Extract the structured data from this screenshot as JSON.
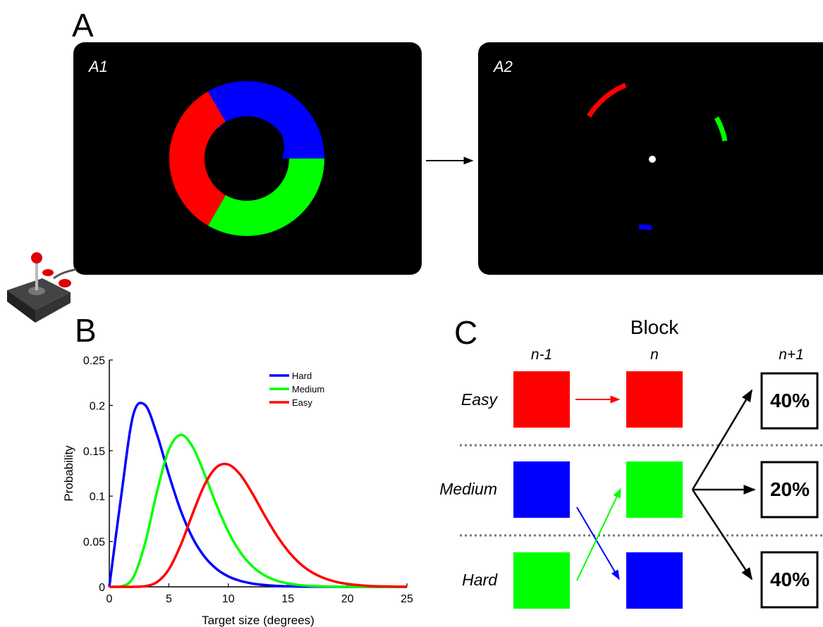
{
  "panels": {
    "a": {
      "label": "A",
      "screens": [
        "A1",
        "A2"
      ]
    },
    "b": {
      "label": "B"
    },
    "c": {
      "label": "C",
      "title": "Block",
      "columns": [
        "n-1",
        "n",
        "n+1"
      ],
      "rows": [
        "Easy",
        "Medium",
        "Hard"
      ],
      "outcomes": [
        "40%",
        "20%",
        "40%"
      ]
    }
  },
  "chart_data": {
    "type": "line",
    "xlabel": "Target size (degrees)",
    "ylabel": "Probability",
    "x": [
      0,
      1,
      2,
      3,
      4,
      5,
      6,
      7,
      8,
      9,
      10,
      11,
      12,
      13,
      14,
      15,
      16,
      17,
      18,
      19,
      20,
      21,
      22,
      23,
      24,
      25
    ],
    "series": [
      {
        "name": "Hard",
        "color": "#0000ff",
        "values": [
          0,
          0.1002,
          0.189,
          0.2005,
          0.168,
          0.1238,
          0.084,
          0.0539,
          0.0332,
          0.0198,
          0.0115,
          0.0066,
          0.0037,
          0.002,
          0.0011,
          0.0006,
          0.0003,
          0.0002,
          0.0001,
          0,
          0,
          0,
          0,
          0,
          0,
          0
        ]
      },
      {
        "name": "Medium",
        "color": "#00ff00",
        "values": [
          0,
          0.00033,
          0.0101,
          0.0477,
          0.1047,
          0.1511,
          0.1675,
          0.1543,
          0.1244,
          0.0905,
          0.0608,
          0.0382,
          0.0228,
          0.013,
          0.0071,
          0.0038,
          0.0019,
          0.001,
          0.0005,
          0.0002,
          0.0001,
          0,
          0,
          0,
          0,
          0
        ]
      },
      {
        "name": "Easy",
        "color": "#ff0000",
        "values": [
          0,
          0,
          2e-05,
          0.00068,
          0.0052,
          0.0193,
          0.0461,
          0.0806,
          0.1124,
          0.1318,
          0.1348,
          0.1236,
          0.1033,
          0.0799,
          0.058,
          0.0398,
          0.0259,
          0.0162,
          0.0098,
          0.0057,
          0.0032,
          0.0018,
          0.0009,
          0.0005,
          0.0003,
          0.0001
        ]
      }
    ],
    "xlim": [
      0,
      25
    ],
    "xticks": [
      0,
      5,
      10,
      15,
      20,
      25
    ],
    "ylim": [
      0,
      0.25
    ],
    "yticks": [
      0,
      0.05,
      0.1,
      0.15,
      0.2,
      0.25
    ],
    "legend": "upper right"
  }
}
